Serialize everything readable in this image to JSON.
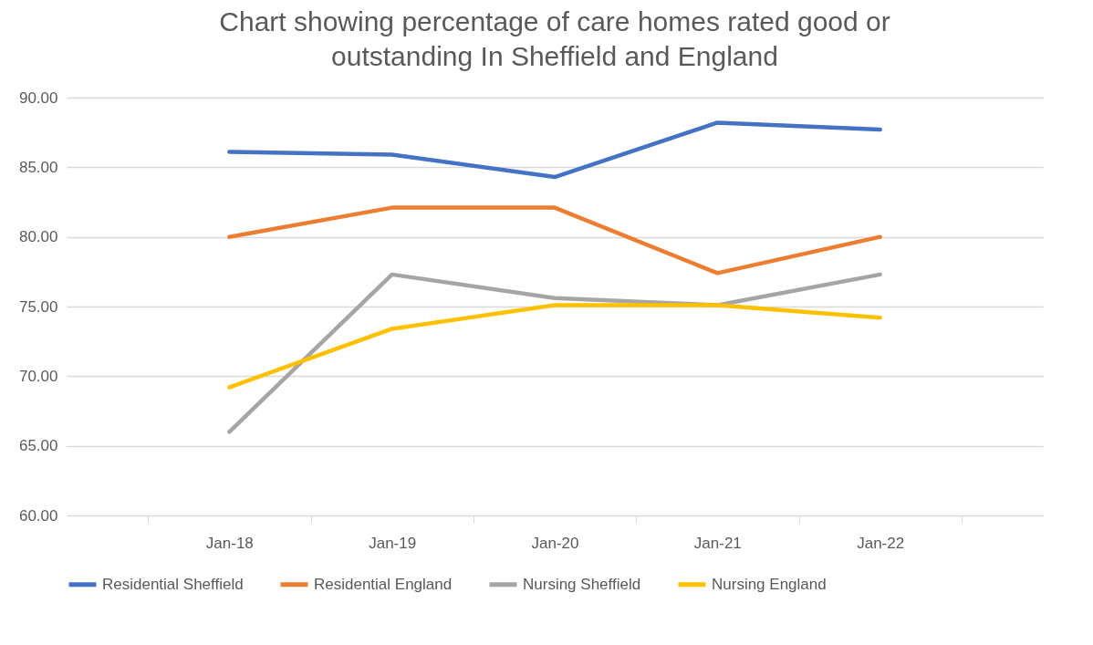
{
  "chart_data": {
    "type": "line",
    "title": "Chart showing percentage of care homes rated good or outstanding In Sheffield and England",
    "categories": [
      "Jan-18",
      "Jan-19",
      "Jan-20",
      "Jan-21",
      "Jan-22"
    ],
    "series": [
      {
        "name": "Residential Sheffield",
        "color": "#4472c4",
        "values": [
          86.1,
          85.9,
          84.3,
          88.2,
          87.7
        ]
      },
      {
        "name": "Residential England",
        "color": "#ed7d31",
        "values": [
          80.0,
          82.1,
          82.1,
          77.4,
          80.0
        ]
      },
      {
        "name": "Nursing Sheffield",
        "color": "#a5a5a5",
        "values": [
          66.0,
          77.3,
          75.6,
          75.1,
          77.3
        ]
      },
      {
        "name": "Nursing England",
        "color": "#ffc000",
        "values": [
          69.2,
          73.4,
          75.1,
          75.1,
          74.2
        ]
      }
    ],
    "ylim": [
      60,
      90
    ],
    "yticks": [
      {
        "value": 60,
        "label": "60.00"
      },
      {
        "value": 65,
        "label": "65.00"
      },
      {
        "value": 70,
        "label": "70.00"
      },
      {
        "value": 75,
        "label": "75.00"
      },
      {
        "value": 80,
        "label": "80.00"
      },
      {
        "value": 85,
        "label": "85.00"
      },
      {
        "value": 90,
        "label": "90.00"
      }
    ],
    "grid": "y",
    "legend": "bottom",
    "marker": "none",
    "line_style": "solid"
  }
}
